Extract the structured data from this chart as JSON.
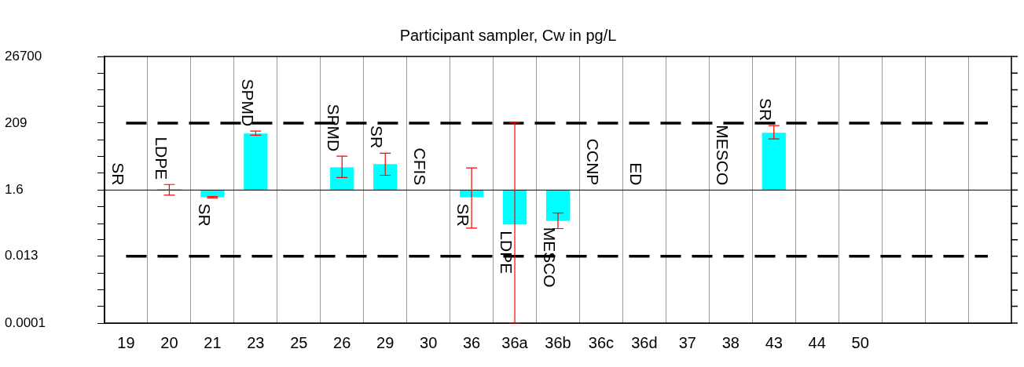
{
  "chart_data": {
    "type": "bar",
    "title": "Participant sampler, Cw in pg/L",
    "categories": [
      "19",
      "20",
      "21",
      "23",
      "25",
      "26",
      "29",
      "30",
      "36",
      "36a",
      "36b",
      "36c",
      "36d",
      "37",
      "38",
      "43",
      "44",
      "50",
      null,
      null,
      null
    ],
    "base": [
      null,
      1.6,
      1.6,
      1.6,
      null,
      1.6,
      1.6,
      null,
      1.6,
      1.6,
      1.6,
      null,
      null,
      null,
      null,
      1.6,
      null,
      null,
      null,
      null,
      null
    ],
    "value_labels": [
      "SR",
      "LDPE",
      "SR",
      "SPMD",
      null,
      "SPMD",
      "SR",
      "CFIS",
      "SR",
      "LDPE",
      "MESCO",
      "CCNP",
      "ED",
      null,
      "MESCO",
      "SR",
      null,
      null,
      null,
      null,
      null
    ],
    "values": [
      null,
      0.1,
      -0.65,
      97,
      null,
      6.8,
      9,
      null,
      -0.65,
      -1.47,
      -1.43,
      null,
      null,
      null,
      null,
      102,
      null,
      null,
      null,
      null,
      null
    ],
    "errors": [
      null,
      [
        1.1,
        2.4
      ],
      [
        0.9,
        1.0
      ],
      [
        87,
        117
      ],
      null,
      [
        4.0,
        18.8
      ],
      [
        4.7,
        23.5
      ],
      null,
      [
        0.1,
        8.0
      ],
      [
        0.0001,
        220
      ],
      [
        0.097,
        0.3
      ],
      null,
      null,
      null,
      null,
      [
        66,
        175
      ],
      null,
      null,
      null,
      null,
      null
    ],
    "color": "#00ffff",
    "log": "y",
    "ylim": [
      0.0001,
      26700
    ],
    "yticks": [
      0.0001,
      {
        "value": 0.00034,
        "label": null
      },
      {
        "value": 0.0011,
        "label": null
      },
      {
        "value": 0.0038,
        "label": null
      },
      0.013,
      {
        "value": 0.043,
        "label": null
      },
      {
        "value": 0.14,
        "label": null
      },
      {
        "value": 0.49,
        "label": null
      },
      1.6,
      {
        "value": 5.5,
        "label": null
      },
      {
        "value": 18.5,
        "label": null
      },
      {
        "value": 62,
        "label": null
      },
      209,
      {
        "value": 700,
        "label": null
      },
      {
        "value": 2360,
        "label": null
      },
      {
        "value": 7940,
        "label": null
      },
      26700
    ],
    "grid": "x",
    "ref_lines": [
      {
        "axis": "y",
        "value": 209,
        "color": "#000000",
        "line_style": "dashed"
      },
      {
        "axis": "y",
        "value": 0.013,
        "color": "#000000",
        "line_style": "dashed"
      },
      {
        "axis": "y",
        "value": 1.6,
        "color": "#000000",
        "line_style": "solid"
      }
    ]
  }
}
